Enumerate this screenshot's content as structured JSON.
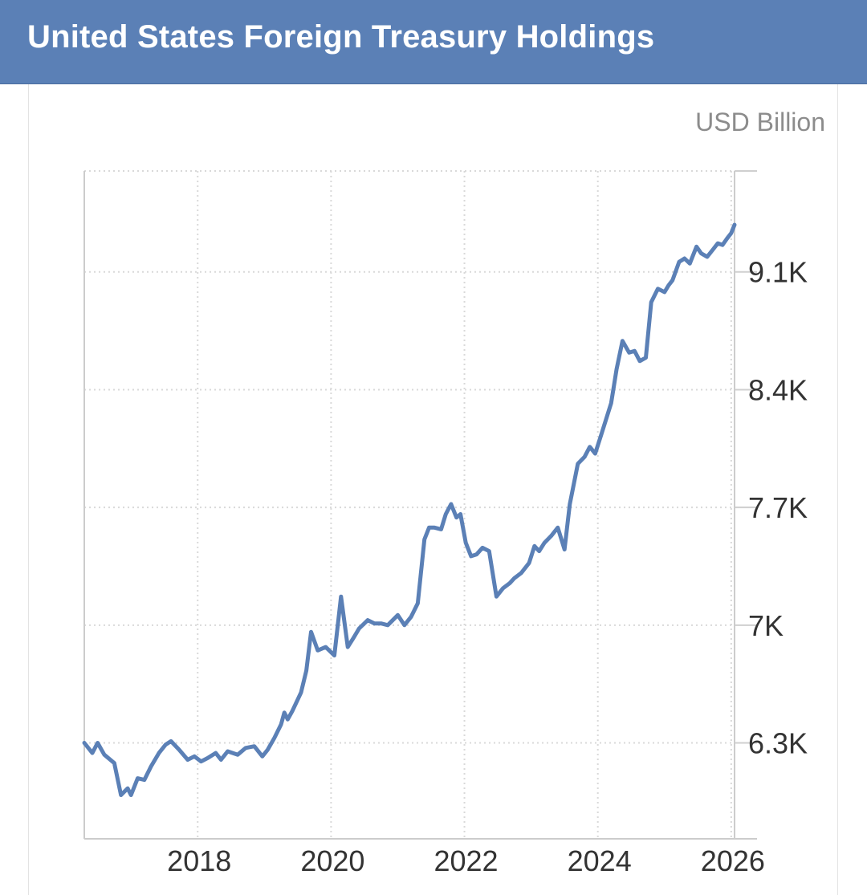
{
  "header": {
    "title": "United States Foreign Treasury Holdings"
  },
  "chart_data": {
    "type": "line",
    "title": "United States Foreign Treasury Holdings",
    "unit": "USD Billion",
    "xlabel": "",
    "ylabel": "",
    "xlim": [
      2016.3,
      2026.05
    ],
    "ylim": [
      5730,
      9700
    ],
    "y_ticks": [
      {
        "value": 6300,
        "label": "6.3K"
      },
      {
        "value": 7000,
        "label": "7K"
      },
      {
        "value": 7700,
        "label": "7.7K"
      },
      {
        "value": 8400,
        "label": "8.4K"
      },
      {
        "value": 9100,
        "label": "9.1K"
      }
    ],
    "x_ticks": [
      {
        "value": 2018,
        "label": "2018"
      },
      {
        "value": 2020,
        "label": "2020"
      },
      {
        "value": 2022,
        "label": "2022"
      },
      {
        "value": 2024,
        "label": "2024"
      },
      {
        "value": 2026,
        "label": "2026"
      }
    ],
    "grid": true,
    "color": "#5b80b6",
    "series": [
      {
        "x": [
          2016.3,
          2016.42,
          2016.5,
          2016.6,
          2016.75,
          2016.85,
          2016.95,
          2017.0,
          2017.1,
          2017.2,
          2017.3,
          2017.42,
          2017.52,
          2017.6,
          2017.72,
          2017.85,
          2017.95,
          2018.05,
          2018.15,
          2018.27,
          2018.35,
          2018.45,
          2018.6,
          2018.72,
          2018.85,
          2018.97,
          2019.05,
          2019.15,
          2019.25,
          2019.3,
          2019.35,
          2019.42,
          2019.55,
          2019.63,
          2019.7,
          2019.8,
          2019.92,
          2020.05,
          2020.15,
          2020.25,
          2020.33,
          2020.42,
          2020.55,
          2020.65,
          2020.75,
          2020.85,
          2021.0,
          2021.1,
          2021.2,
          2021.3,
          2021.4,
          2021.47,
          2021.55,
          2021.65,
          2021.72,
          2021.8,
          2021.88,
          2021.94,
          2022.02,
          2022.1,
          2022.18,
          2022.27,
          2022.37,
          2022.48,
          2022.58,
          2022.68,
          2022.75,
          2022.85,
          2022.97,
          2023.05,
          2023.12,
          2023.2,
          2023.3,
          2023.4,
          2023.5,
          2023.58,
          2023.7,
          2023.8,
          2023.88,
          2023.96,
          2024.05,
          2024.12,
          2024.2,
          2024.28,
          2024.37,
          2024.47,
          2024.55,
          2024.63,
          2024.72,
          2024.8,
          2024.9,
          2025.0,
          2025.06,
          2025.12,
          2025.22,
          2025.3,
          2025.38,
          2025.48,
          2025.55,
          2025.64,
          2025.72,
          2025.8,
          2025.87,
          2025.94,
          2026.0,
          2026.05
        ],
        "values": [
          6300,
          6240,
          6300,
          6230,
          6180,
          5990,
          6030,
          5990,
          6090,
          6080,
          6160,
          6240,
          6290,
          6310,
          6260,
          6200,
          6220,
          6190,
          6210,
          6240,
          6200,
          6250,
          6230,
          6270,
          6280,
          6220,
          6260,
          6330,
          6410,
          6480,
          6440,
          6490,
          6600,
          6730,
          6960,
          6850,
          6870,
          6820,
          7170,
          6870,
          6920,
          6980,
          7030,
          7010,
          7010,
          7000,
          7060,
          7000,
          7050,
          7130,
          7510,
          7580,
          7580,
          7570,
          7660,
          7720,
          7640,
          7660,
          7490,
          7410,
          7420,
          7460,
          7440,
          7170,
          7220,
          7250,
          7280,
          7310,
          7370,
          7470,
          7440,
          7490,
          7530,
          7580,
          7450,
          7720,
          7960,
          8000,
          8060,
          8020,
          8130,
          8220,
          8320,
          8520,
          8690,
          8620,
          8630,
          8570,
          8590,
          8920,
          9000,
          8980,
          9020,
          9050,
          9160,
          9180,
          9150,
          9250,
          9210,
          9190,
          9230,
          9270,
          9260,
          9300,
          9330,
          9380
        ]
      }
    ]
  }
}
